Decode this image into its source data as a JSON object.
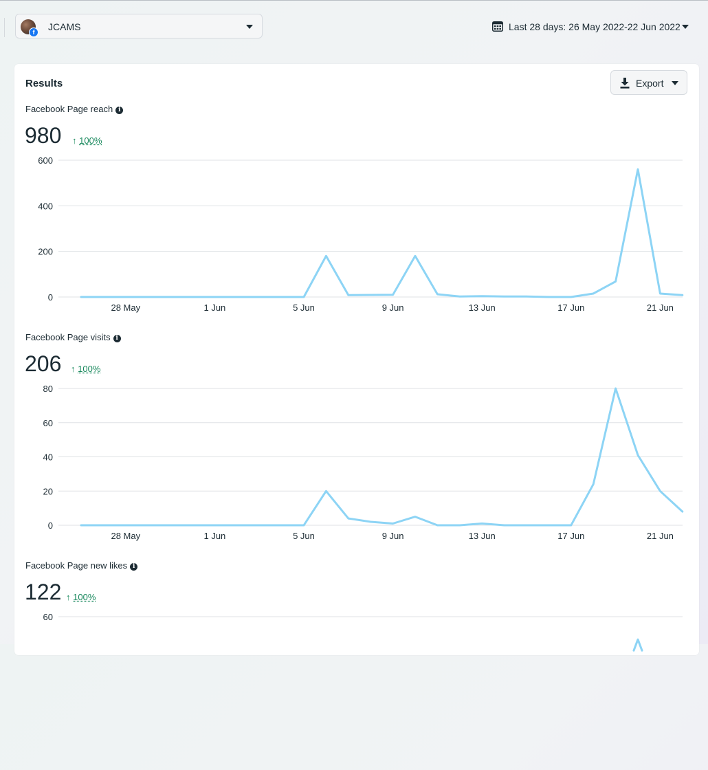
{
  "account": {
    "name": "JCAMS",
    "platform_badge": "f"
  },
  "date_range": {
    "label": "Last 28 days: 26 May 2022-22 Jun 2022"
  },
  "card": {
    "title": "Results",
    "export_label": "Export"
  },
  "colors": {
    "line": "#8dd4f5",
    "positive": "#16875b",
    "grid": "#dfe2e5",
    "text": "#1c2b33"
  },
  "info_glyph": "i",
  "metrics": [
    {
      "label": "Facebook Page reach",
      "value": "980",
      "arrow": "↑",
      "change": "100%"
    },
    {
      "label": "Facebook Page visits",
      "value": "206",
      "arrow": "↑",
      "change": "100%"
    },
    {
      "label": "Facebook Page new likes",
      "value": "122",
      "arrow": "↑",
      "change": "100%"
    }
  ],
  "chart_data": [
    {
      "type": "line",
      "title": "Facebook Page reach",
      "x_tick_labels": [
        "28 May",
        "1 Jun",
        "5 Jun",
        "9 Jun",
        "13 Jun",
        "17 Jun",
        "21 Jun"
      ],
      "x": [
        "26 May",
        "27 May",
        "28 May",
        "29 May",
        "30 May",
        "31 May",
        "1 Jun",
        "2 Jun",
        "3 Jun",
        "4 Jun",
        "5 Jun",
        "6 Jun",
        "7 Jun",
        "8 Jun",
        "9 Jun",
        "10 Jun",
        "11 Jun",
        "12 Jun",
        "13 Jun",
        "14 Jun",
        "15 Jun",
        "16 Jun",
        "17 Jun",
        "18 Jun",
        "19 Jun",
        "20 Jun",
        "21 Jun",
        "22 Jun"
      ],
      "values": [
        0,
        0,
        0,
        0,
        0,
        0,
        0,
        0,
        0,
        0,
        0,
        180,
        8,
        9,
        10,
        180,
        12,
        2,
        4,
        2,
        2,
        0,
        0,
        15,
        68,
        560,
        15,
        8
      ],
      "yticks": [
        0,
        200,
        400,
        600
      ],
      "ylim": [
        0,
        600
      ]
    },
    {
      "type": "line",
      "title": "Facebook Page visits",
      "x_tick_labels": [
        "28 May",
        "1 Jun",
        "5 Jun",
        "9 Jun",
        "13 Jun",
        "17 Jun",
        "21 Jun"
      ],
      "x": [
        "26 May",
        "27 May",
        "28 May",
        "29 May",
        "30 May",
        "31 May",
        "1 Jun",
        "2 Jun",
        "3 Jun",
        "4 Jun",
        "5 Jun",
        "6 Jun",
        "7 Jun",
        "8 Jun",
        "9 Jun",
        "10 Jun",
        "11 Jun",
        "12 Jun",
        "13 Jun",
        "14 Jun",
        "15 Jun",
        "16 Jun",
        "17 Jun",
        "18 Jun",
        "19 Jun",
        "20 Jun",
        "21 Jun",
        "22 Jun"
      ],
      "values": [
        0,
        0,
        0,
        0,
        0,
        0,
        0,
        0,
        0,
        0,
        0,
        20,
        4,
        2,
        1,
        5,
        0,
        0,
        1,
        0,
        0,
        0,
        0,
        24,
        80,
        41,
        20,
        8
      ],
      "yticks": [
        0,
        20,
        40,
        60,
        80
      ],
      "ylim": [
        0,
        80
      ]
    },
    {
      "type": "line",
      "title": "Facebook Page new likes",
      "x": [
        "26 May",
        "27 May",
        "28 May",
        "29 May",
        "30 May",
        "31 May",
        "1 Jun",
        "2 Jun",
        "3 Jun",
        "4 Jun",
        "5 Jun",
        "6 Jun",
        "7 Jun",
        "8 Jun",
        "9 Jun",
        "10 Jun",
        "11 Jun",
        "12 Jun",
        "13 Jun",
        "14 Jun",
        "15 Jun",
        "16 Jun",
        "17 Jun",
        "18 Jun",
        "19 Jun",
        "20 Jun",
        "21 Jun",
        "22 Jun"
      ],
      "values": [
        null,
        null,
        null,
        null,
        null,
        null,
        null,
        null,
        null,
        null,
        null,
        null,
        null,
        null,
        null,
        null,
        null,
        null,
        null,
        null,
        null,
        null,
        null,
        null,
        null,
        50,
        null,
        null
      ],
      "yticks": [
        60
      ],
      "ylim": [
        0,
        60
      ],
      "note": "partially visible; only the 60 gridline and the peak near 20 Jun are shown"
    }
  ]
}
